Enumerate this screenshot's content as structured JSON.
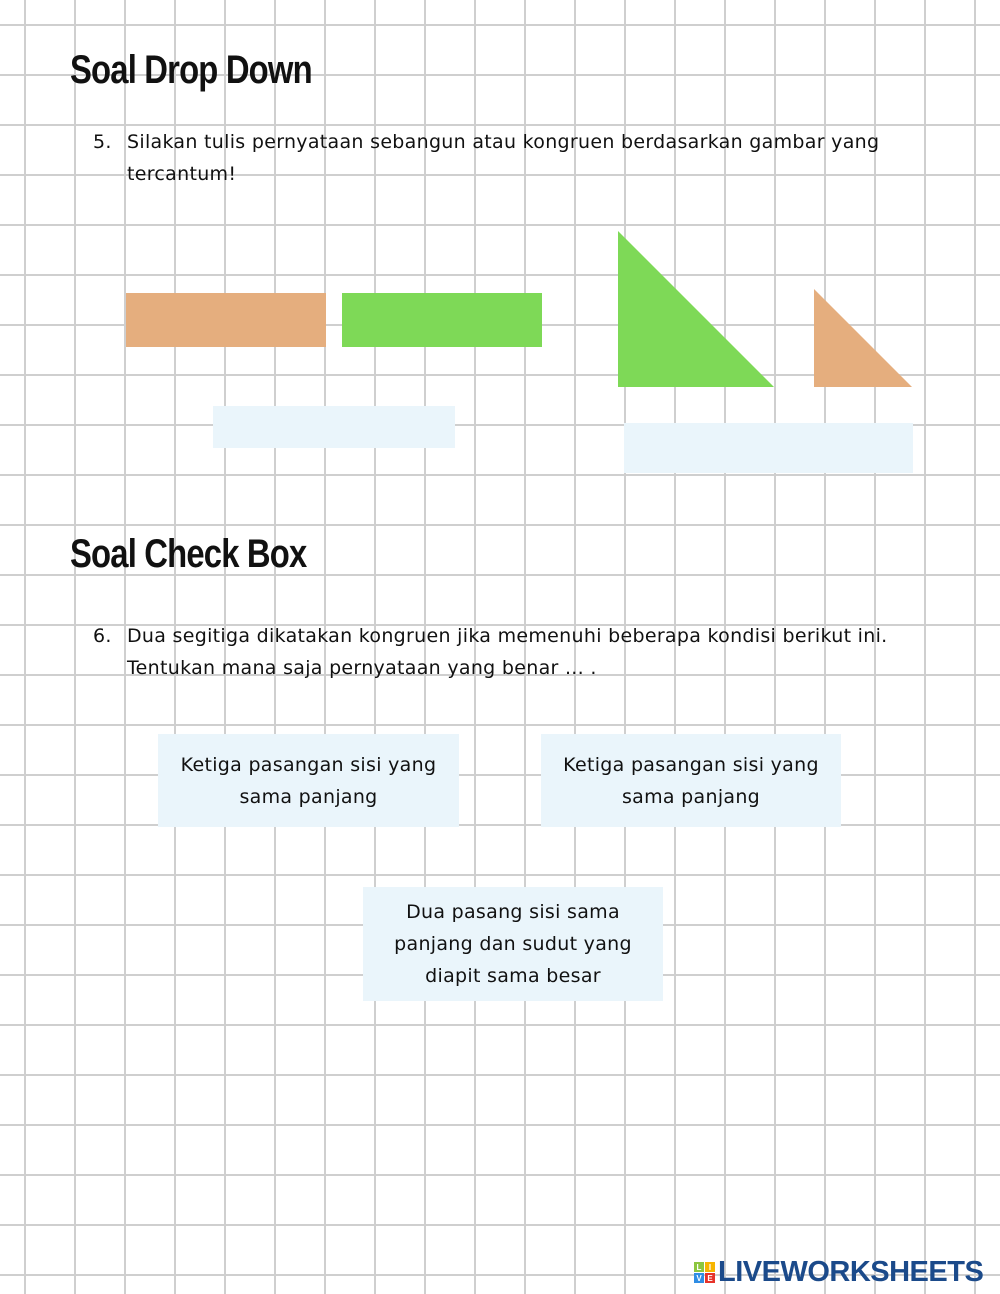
{
  "section1": {
    "title": "Soal Drop Down",
    "number": "5.",
    "question": "Silakan tulis pernyataan sebangun atau kongruen berdasarkan gambar yang tercantum!"
  },
  "shapes": {
    "orange": "#e5ae7e",
    "green": "#7ed957",
    "dropzone": "#eaf5fb"
  },
  "section2": {
    "title": "Soal Check Box",
    "number": "6.",
    "question": "Dua segitiga dikatakan kongruen jika memenuhi beberapa kondisi berikut ini. Tentukan mana saja pernyataan yang benar ... .",
    "options": [
      "Ketiga pasangan sisi yang sama panjang",
      "Ketiga pasangan sisi yang sama panjang",
      "Dua pasang sisi sama panjang dan sudut yang diapit sama besar"
    ]
  },
  "logo": {
    "text": "LIVEWORKSHEETS",
    "letters": [
      "L",
      "I",
      "V",
      "E"
    ]
  }
}
